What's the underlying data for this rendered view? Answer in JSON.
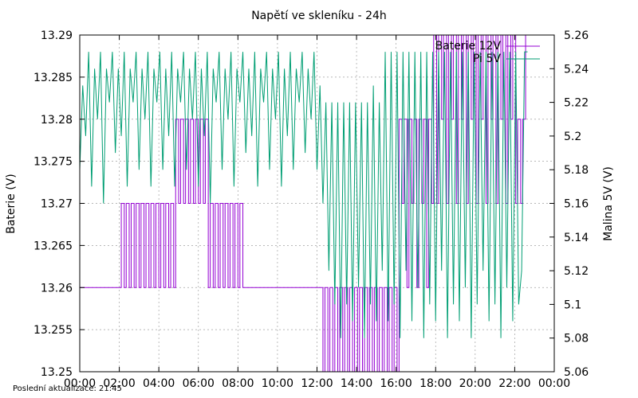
{
  "chart_data": {
    "type": "line",
    "title": "Napětí ve skleníku - 24h",
    "xlabel": "",
    "ylabel": "Baterie (V)",
    "y2label": "Malina 5V (V)",
    "xlim": [
      0,
      24
    ],
    "ylim": [
      13.25,
      13.29
    ],
    "y2lim": [
      5.06,
      5.26
    ],
    "x_ticks": [
      "00:00",
      "02:00",
      "04:00",
      "06:00",
      "08:00",
      "10:00",
      "12:00",
      "14:00",
      "16:00",
      "18:00",
      "20:00",
      "22:00",
      "00:00"
    ],
    "y_ticks": [
      "13.25",
      "13.255",
      "13.26",
      "13.265",
      "13.27",
      "13.275",
      "13.28",
      "13.285",
      "13.29"
    ],
    "y2_ticks": [
      "5.06",
      "5.08",
      "5.1",
      "5.12",
      "5.14",
      "5.16",
      "5.18",
      "5.2",
      "5.22",
      "5.24",
      "5.26"
    ],
    "grid": true,
    "legend_position": "top-right",
    "series": [
      {
        "name": "Baterie 12V",
        "axis": "left",
        "color": "#9400d3",
        "x": [
          0,
          2.0,
          2.1,
          2.25,
          2.35,
          2.5,
          2.6,
          2.75,
          2.85,
          3.0,
          3.1,
          3.25,
          3.35,
          3.5,
          3.6,
          3.75,
          3.85,
          4.0,
          4.1,
          4.25,
          4.35,
          4.5,
          4.6,
          4.75,
          4.85,
          5.0,
          5.1,
          5.25,
          5.35,
          5.5,
          5.6,
          5.75,
          5.85,
          6.0,
          6.1,
          6.25,
          6.35,
          6.5,
          6.6,
          6.75,
          6.85,
          7.0,
          7.1,
          7.25,
          7.35,
          7.5,
          7.6,
          7.75,
          7.85,
          8.0,
          8.1,
          8.25,
          8.35,
          8.5,
          12.2,
          12.3,
          12.4,
          12.55,
          12.65,
          12.8,
          12.9,
          13.05,
          13.15,
          13.3,
          13.4,
          13.55,
          13.65,
          13.8,
          13.9,
          14.05,
          14.15,
          14.3,
          14.4,
          14.55,
          14.65,
          14.8,
          14.9,
          15.05,
          15.15,
          15.3,
          15.4,
          15.55,
          15.65,
          15.8,
          15.9,
          16.05,
          16.15,
          16.3,
          16.4,
          16.55,
          16.65,
          16.8,
          16.9,
          17.05,
          17.15,
          17.3,
          17.4,
          17.55,
          17.65,
          17.8,
          17.9,
          18.05,
          18.15,
          18.3,
          18.4,
          18.55,
          18.65,
          18.8,
          18.9,
          19.05,
          19.15,
          19.3,
          19.4,
          19.55,
          19.65,
          19.8,
          19.9,
          20.05,
          20.15,
          20.3,
          20.4,
          20.55,
          20.65,
          20.8,
          20.9,
          21.05,
          21.15,
          21.3,
          21.4,
          21.55,
          21.65,
          21.8,
          21.9,
          22.05,
          22.15,
          22.3,
          22.4,
          22.55
        ],
        "values": [
          13.26,
          13.26,
          13.27,
          13.26,
          13.27,
          13.26,
          13.27,
          13.26,
          13.27,
          13.26,
          13.27,
          13.26,
          13.27,
          13.26,
          13.27,
          13.26,
          13.27,
          13.26,
          13.27,
          13.26,
          13.27,
          13.26,
          13.27,
          13.26,
          13.28,
          13.27,
          13.28,
          13.27,
          13.28,
          13.27,
          13.28,
          13.27,
          13.28,
          13.27,
          13.28,
          13.27,
          13.28,
          13.26,
          13.27,
          13.26,
          13.27,
          13.26,
          13.27,
          13.26,
          13.27,
          13.26,
          13.27,
          13.26,
          13.27,
          13.26,
          13.27,
          13.26,
          13.26,
          13.26,
          13.26,
          13.25,
          13.26,
          13.25,
          13.26,
          13.25,
          13.26,
          13.25,
          13.26,
          13.25,
          13.26,
          13.25,
          13.26,
          13.25,
          13.26,
          13.25,
          13.26,
          13.25,
          13.26,
          13.25,
          13.26,
          13.25,
          13.26,
          13.25,
          13.26,
          13.25,
          13.26,
          13.25,
          13.26,
          13.25,
          13.26,
          13.25,
          13.28,
          13.27,
          13.28,
          13.26,
          13.28,
          13.27,
          13.28,
          13.26,
          13.28,
          13.27,
          13.28,
          13.26,
          13.28,
          13.27,
          13.29,
          13.27,
          13.29,
          13.28,
          13.29,
          13.27,
          13.29,
          13.28,
          13.29,
          13.27,
          13.29,
          13.28,
          13.29,
          13.27,
          13.29,
          13.28,
          13.29,
          13.27,
          13.29,
          13.28,
          13.29,
          13.27,
          13.29,
          13.28,
          13.29,
          13.27,
          13.29,
          13.28,
          13.29,
          13.27,
          13.29,
          13.28,
          13.29,
          13.27,
          13.28,
          13.27,
          13.28,
          13.29
        ]
      },
      {
        "name": "Pi 5V",
        "axis": "right",
        "color": "#009e73",
        "x": [
          0,
          0.15,
          0.3,
          0.45,
          0.6,
          0.75,
          0.9,
          1.05,
          1.2,
          1.35,
          1.5,
          1.65,
          1.8,
          1.95,
          2.1,
          2.25,
          2.4,
          2.55,
          2.7,
          2.85,
          3.0,
          3.15,
          3.3,
          3.45,
          3.6,
          3.75,
          3.9,
          4.05,
          4.2,
          4.35,
          4.5,
          4.65,
          4.8,
          4.95,
          5.1,
          5.25,
          5.4,
          5.55,
          5.7,
          5.85,
          6.0,
          6.15,
          6.3,
          6.45,
          6.6,
          6.75,
          6.9,
          7.05,
          7.2,
          7.35,
          7.5,
          7.65,
          7.8,
          7.95,
          8.1,
          8.25,
          8.4,
          8.55,
          8.7,
          8.85,
          9.0,
          9.15,
          9.3,
          9.45,
          9.6,
          9.75,
          9.9,
          10.05,
          10.2,
          10.35,
          10.5,
          10.65,
          10.8,
          10.95,
          11.1,
          11.25,
          11.4,
          11.55,
          11.7,
          11.85,
          12.0,
          12.15,
          12.3,
          12.45,
          12.6,
          12.75,
          12.9,
          13.05,
          13.2,
          13.35,
          13.5,
          13.65,
          13.8,
          13.95,
          14.1,
          14.25,
          14.4,
          14.55,
          14.7,
          14.85,
          15.0,
          15.15,
          15.3,
          15.45,
          15.6,
          15.75,
          15.9,
          16.05,
          16.2,
          16.35,
          16.5,
          16.65,
          16.8,
          16.95,
          17.1,
          17.25,
          17.4,
          17.55,
          17.7,
          17.85,
          18.0,
          18.15,
          18.3,
          18.45,
          18.6,
          18.75,
          18.9,
          19.05,
          19.2,
          19.35,
          19.5,
          19.65,
          19.8,
          19.95,
          20.1,
          20.25,
          20.4,
          20.55,
          20.7,
          20.85,
          21.0,
          21.15,
          21.3,
          21.45,
          21.6,
          21.75,
          21.9,
          22.05,
          22.2,
          22.35,
          22.5,
          22.65
        ],
        "values": [
          5.18,
          5.23,
          5.2,
          5.25,
          5.17,
          5.24,
          5.21,
          5.25,
          5.16,
          5.24,
          5.22,
          5.25,
          5.19,
          5.24,
          5.2,
          5.25,
          5.17,
          5.24,
          5.22,
          5.25,
          5.18,
          5.24,
          5.21,
          5.25,
          5.17,
          5.24,
          5.22,
          5.25,
          5.18,
          5.24,
          5.2,
          5.25,
          5.17,
          5.24,
          5.22,
          5.25,
          5.18,
          5.24,
          5.21,
          5.25,
          5.17,
          5.24,
          5.2,
          5.25,
          5.16,
          5.24,
          5.22,
          5.25,
          5.18,
          5.24,
          5.21,
          5.25,
          5.17,
          5.24,
          5.22,
          5.25,
          5.19,
          5.24,
          5.2,
          5.25,
          5.17,
          5.24,
          5.22,
          5.25,
          5.18,
          5.24,
          5.21,
          5.25,
          5.17,
          5.24,
          5.2,
          5.25,
          5.18,
          5.24,
          5.22,
          5.25,
          5.19,
          5.24,
          5.21,
          5.25,
          5.18,
          5.23,
          5.16,
          5.22,
          5.12,
          5.22,
          5.1,
          5.22,
          5.08,
          5.22,
          5.1,
          5.22,
          5.09,
          5.22,
          5.11,
          5.22,
          5.08,
          5.22,
          5.1,
          5.23,
          5.09,
          5.22,
          5.12,
          5.25,
          5.09,
          5.25,
          5.1,
          5.25,
          5.08,
          5.25,
          5.12,
          5.25,
          5.09,
          5.25,
          5.11,
          5.25,
          5.08,
          5.25,
          5.1,
          5.25,
          5.09,
          5.25,
          5.12,
          5.25,
          5.08,
          5.25,
          5.1,
          5.25,
          5.09,
          5.25,
          5.11,
          5.25,
          5.08,
          5.25,
          5.1,
          5.25,
          5.12,
          5.25,
          5.09,
          5.25,
          5.1,
          5.25,
          5.08,
          5.25,
          5.11,
          5.25,
          5.09,
          5.25,
          5.1,
          5.12,
          5.25,
          5.25
        ]
      }
    ]
  },
  "footnote": "Poslední aktualizace: 21:45"
}
